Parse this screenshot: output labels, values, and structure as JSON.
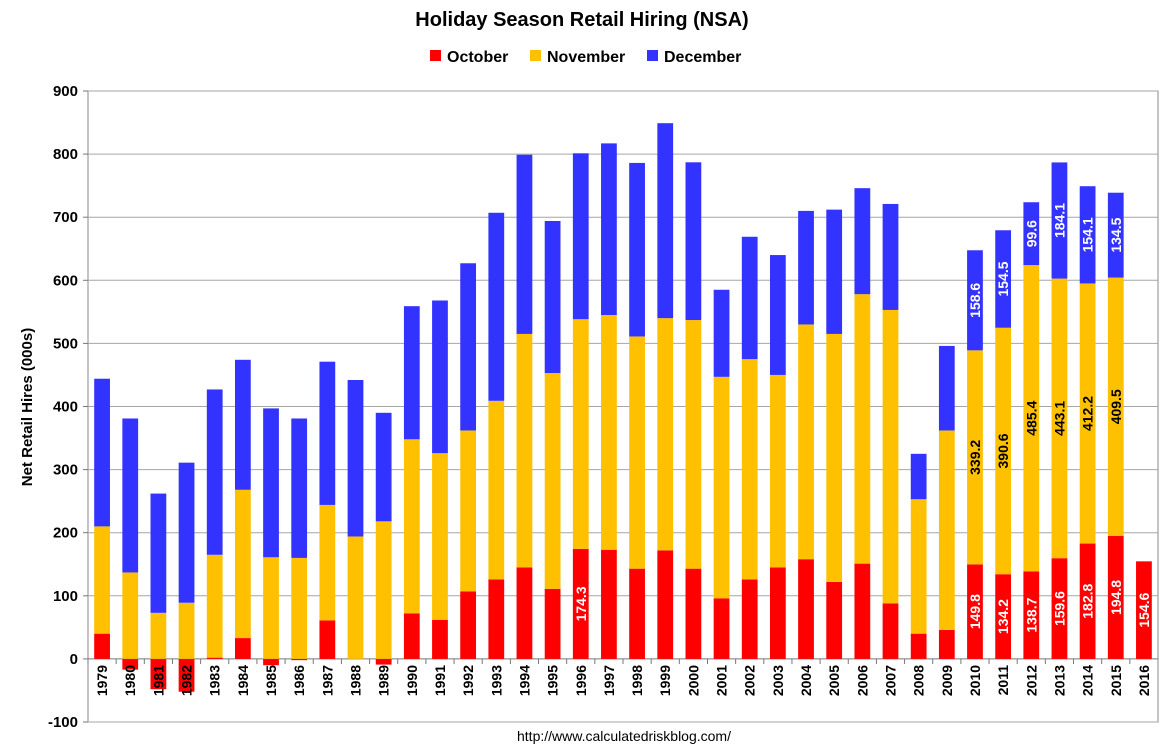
{
  "source": "http://www.calculatedriskblog.com/",
  "chart_data": {
    "type": "bar",
    "stacked": true,
    "title": "Holiday Season Retail Hiring (NSA)",
    "ylabel": "Net Retail Hires (000s)",
    "xlabel": "",
    "ylim": [
      -100,
      900
    ],
    "yticks": [
      -100,
      0,
      100,
      200,
      300,
      400,
      500,
      600,
      700,
      800,
      900
    ],
    "grid": true,
    "legend_position": "top-center",
    "colors": {
      "October": "#ff0000",
      "November": "#ffc000",
      "December": "#3333ff"
    },
    "categories": [
      "1979",
      "1980",
      "1981",
      "1982",
      "1983",
      "1984",
      "1985",
      "1986",
      "1987",
      "1988",
      "1989",
      "1990",
      "1991",
      "1992",
      "1993",
      "1994",
      "1995",
      "1996",
      "1997",
      "1998",
      "1999",
      "2000",
      "2001",
      "2002",
      "2003",
      "2004",
      "2005",
      "2006",
      "2007",
      "2008",
      "2009",
      "2010",
      "2011",
      "2012",
      "2013",
      "2014",
      "2015",
      "2016"
    ],
    "series": [
      {
        "name": "October",
        "values": [
          40,
          -17,
          -48,
          -52,
          2,
          33,
          -10,
          -2,
          61,
          0,
          -9,
          72,
          62,
          107,
          126,
          145,
          111,
          174.3,
          173,
          143,
          172,
          143,
          96,
          126,
          145,
          158,
          122,
          151,
          88,
          40,
          46,
          149.8,
          134.2,
          138.7,
          159.6,
          182.8,
          194.8,
          154.6
        ]
      },
      {
        "name": "November",
        "values": [
          170,
          137,
          73,
          89,
          163,
          235,
          161,
          160,
          183,
          194,
          218,
          276,
          264,
          255,
          283,
          370,
          342,
          364,
          372,
          368,
          368,
          394,
          351,
          349,
          305,
          372,
          393,
          427,
          465,
          213,
          316,
          339.2,
          390.6,
          485.4,
          443.1,
          412.2,
          409.5,
          null
        ]
      },
      {
        "name": "December",
        "values": [
          234,
          244,
          189,
          222,
          262,
          206,
          236,
          221,
          227,
          248,
          172,
          211,
          242,
          265,
          298,
          284,
          241,
          263,
          272,
          275,
          309,
          250,
          138,
          194,
          190,
          180,
          197,
          168,
          168,
          72,
          134,
          158.6,
          154.5,
          99.6,
          184.1,
          154.1,
          134.5,
          null
        ]
      }
    ],
    "data_labels": {
      "October": {
        "1996": "174.3",
        "2010": "149.8",
        "2011": "134.2",
        "2012": "138.7",
        "2013": "159.6",
        "2014": "182.8",
        "2015": "194.8",
        "2016": "154.6"
      },
      "November": {
        "2010": "339.2",
        "2011": "390.6",
        "2012": "485.4",
        "2013": "443.1",
        "2014": "412.2",
        "2015": "409.5"
      },
      "December": {
        "2010": "158.6",
        "2011": "154.5",
        "2012": "99.6",
        "2013": "184.1",
        "2014": "154.1",
        "2015": "134.5"
      }
    }
  }
}
